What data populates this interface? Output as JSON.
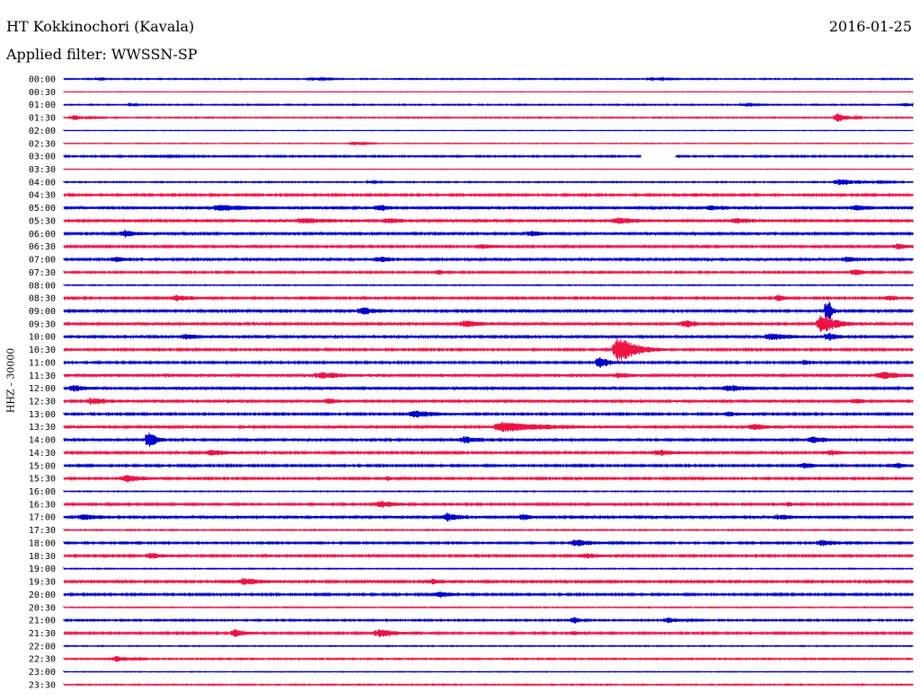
{
  "header": {
    "station": "HT Kokkinochori (Kavala)",
    "date": "2016-01-25",
    "filter": "Applied filter: WWSSN-SP"
  },
  "axis": {
    "channel_label": "HHZ - 30000"
  },
  "colors": {
    "even_trace": "#0000cc",
    "odd_trace": "#ee1144",
    "background": "#ffffff",
    "text": "#000000"
  },
  "chart_data": {
    "type": "line",
    "title": "HT Kokkinochori (Kavala)",
    "subtitle": "Applied filter: WWSSN-SP",
    "ylabel": "HHZ - 30000",
    "xlabel": "",
    "trace_interval_minutes": 30,
    "rows": [
      {
        "label": "00:00",
        "noise": 0.6,
        "events": [
          {
            "at": 0.04,
            "amp": 1.5,
            "len": 0.01
          },
          {
            "at": 0.29,
            "amp": 1.4,
            "len": 0.04
          },
          {
            "at": 0.69,
            "amp": 1.4,
            "len": 0.04
          }
        ]
      },
      {
        "label": "00:30",
        "noise": 0.3,
        "events": []
      },
      {
        "label": "01:00",
        "noise": 0.6,
        "events": [
          {
            "at": 0.08,
            "amp": 1.2,
            "len": 0.01
          },
          {
            "at": 0.8,
            "amp": 1.3,
            "len": 0.03
          },
          {
            "at": 0.99,
            "amp": 2.0,
            "len": 0.02
          }
        ]
      },
      {
        "label": "01:30",
        "noise": 0.6,
        "events": [
          {
            "at": 0.01,
            "amp": 2.5,
            "len": 0.04
          },
          {
            "at": 0.91,
            "amp": 4.5,
            "len": 0.03
          }
        ]
      },
      {
        "label": "02:00",
        "noise": 0.3,
        "events": []
      },
      {
        "label": "02:30",
        "noise": 0.4,
        "events": [
          {
            "at": 0.34,
            "amp": 2.2,
            "len": 0.03
          }
        ]
      },
      {
        "label": "03:00",
        "noise": 0.8,
        "events": [
          {
            "at": 0.1,
            "amp": 1.3,
            "len": 0.06
          },
          {
            "at": 0.71,
            "amp": 4.0,
            "len": 0.01
          }
        ],
        "gaps": [
          [
            0.68,
            0.72
          ]
        ]
      },
      {
        "label": "03:30",
        "noise": 0.3,
        "events": []
      },
      {
        "label": "04:00",
        "noise": 0.6,
        "events": [
          {
            "at": 0.36,
            "amp": 1.2,
            "len": 0.02
          },
          {
            "at": 0.91,
            "amp": 3.0,
            "len": 0.08
          }
        ]
      },
      {
        "label": "04:30",
        "noise": 1.0,
        "events": [
          {
            "at": 0.74,
            "amp": 1.5,
            "len": 0.03
          }
        ]
      },
      {
        "label": "05:00",
        "noise": 1.4,
        "events": [
          {
            "at": 0.18,
            "amp": 2.6,
            "len": 0.1
          },
          {
            "at": 0.37,
            "amp": 3.0,
            "len": 0.03
          },
          {
            "at": 0.76,
            "amp": 2.0,
            "len": 0.05
          },
          {
            "at": 0.93,
            "amp": 2.2,
            "len": 0.05
          }
        ]
      },
      {
        "label": "05:30",
        "noise": 1.3,
        "events": [
          {
            "at": 0.28,
            "amp": 2.4,
            "len": 0.08
          },
          {
            "at": 0.38,
            "amp": 2.6,
            "len": 0.04
          },
          {
            "at": 0.65,
            "amp": 2.8,
            "len": 0.07
          },
          {
            "at": 0.79,
            "amp": 2.4,
            "len": 0.05
          }
        ]
      },
      {
        "label": "06:00",
        "noise": 1.2,
        "events": [
          {
            "at": 0.07,
            "amp": 3.5,
            "len": 0.04
          },
          {
            "at": 0.55,
            "amp": 2.8,
            "len": 0.03
          }
        ]
      },
      {
        "label": "06:30",
        "noise": 1.1,
        "events": [
          {
            "at": 0.49,
            "amp": 2.2,
            "len": 0.06
          },
          {
            "at": 0.98,
            "amp": 2.6,
            "len": 0.04
          }
        ]
      },
      {
        "label": "07:00",
        "noise": 1.3,
        "events": [
          {
            "at": 0.06,
            "amp": 2.4,
            "len": 0.03
          },
          {
            "at": 0.37,
            "amp": 2.2,
            "len": 0.05
          },
          {
            "at": 0.92,
            "amp": 2.4,
            "len": 0.05
          }
        ]
      },
      {
        "label": "07:30",
        "noise": 0.9,
        "events": [
          {
            "at": 0.44,
            "amp": 2.4,
            "len": 0.02
          },
          {
            "at": 0.93,
            "amp": 3.2,
            "len": 0.03
          }
        ]
      },
      {
        "label": "08:00",
        "noise": 0.5,
        "events": []
      },
      {
        "label": "08:30",
        "noise": 1.0,
        "events": [
          {
            "at": 0.13,
            "amp": 2.6,
            "len": 0.06
          },
          {
            "at": 0.84,
            "amp": 4.0,
            "len": 0.02
          },
          {
            "at": 0.97,
            "amp": 2.4,
            "len": 0.04
          }
        ]
      },
      {
        "label": "09:00",
        "noise": 1.1,
        "events": [
          {
            "at": 0.35,
            "amp": 3.5,
            "len": 0.05
          },
          {
            "at": 0.9,
            "amp": 14.0,
            "len": 0.01
          }
        ]
      },
      {
        "label": "09:30",
        "noise": 1.2,
        "events": [
          {
            "at": 0.47,
            "amp": 3.0,
            "len": 0.06
          },
          {
            "at": 0.73,
            "amp": 3.6,
            "len": 0.04
          },
          {
            "at": 0.89,
            "amp": 10.0,
            "len": 0.05
          }
        ]
      },
      {
        "label": "10:00",
        "noise": 1.2,
        "events": [
          {
            "at": 0.14,
            "amp": 2.2,
            "len": 0.06
          },
          {
            "at": 0.83,
            "amp": 3.0,
            "len": 0.07
          },
          {
            "at": 0.9,
            "amp": 4.0,
            "len": 0.03
          }
        ]
      },
      {
        "label": "10:30",
        "noise": 1.0,
        "events": [
          {
            "at": 0.65,
            "amp": 14.0,
            "len": 0.06
          }
        ]
      },
      {
        "label": "11:00",
        "noise": 1.0,
        "events": [
          {
            "at": 0.63,
            "amp": 6.0,
            "len": 0.03
          },
          {
            "at": 0.87,
            "amp": 2.2,
            "len": 0.04
          }
        ]
      },
      {
        "label": "11:30",
        "noise": 1.3,
        "events": [
          {
            "at": 0.3,
            "amp": 3.0,
            "len": 0.08
          },
          {
            "at": 0.65,
            "amp": 2.4,
            "len": 0.04
          },
          {
            "at": 0.96,
            "amp": 3.6,
            "len": 0.06
          }
        ]
      },
      {
        "label": "12:00",
        "noise": 1.5,
        "events": [
          {
            "at": 0.01,
            "amp": 3.0,
            "len": 0.03
          },
          {
            "at": 0.78,
            "amp": 2.6,
            "len": 0.06
          }
        ]
      },
      {
        "label": "12:30",
        "noise": 1.2,
        "events": [
          {
            "at": 0.03,
            "amp": 3.0,
            "len": 0.06
          },
          {
            "at": 0.31,
            "amp": 2.6,
            "len": 0.03
          },
          {
            "at": 0.93,
            "amp": 2.4,
            "len": 0.03
          }
        ]
      },
      {
        "label": "13:00",
        "noise": 1.0,
        "events": [
          {
            "at": 0.41,
            "amp": 3.2,
            "len": 0.08
          },
          {
            "at": 0.78,
            "amp": 2.0,
            "len": 0.05
          }
        ]
      },
      {
        "label": "13:30",
        "noise": 1.3,
        "events": [
          {
            "at": 0.51,
            "amp": 4.5,
            "len": 0.15
          },
          {
            "at": 0.81,
            "amp": 2.6,
            "len": 0.05
          }
        ]
      },
      {
        "label": "14:00",
        "noise": 1.4,
        "events": [
          {
            "at": 0.1,
            "amp": 9.0,
            "len": 0.02
          },
          {
            "at": 0.47,
            "amp": 3.0,
            "len": 0.05
          },
          {
            "at": 0.88,
            "amp": 2.8,
            "len": 0.04
          }
        ]
      },
      {
        "label": "14:30",
        "noise": 1.1,
        "events": [
          {
            "at": 0.17,
            "amp": 2.6,
            "len": 0.06
          },
          {
            "at": 0.7,
            "amp": 2.8,
            "len": 0.05
          },
          {
            "at": 0.9,
            "amp": 2.6,
            "len": 0.04
          }
        ]
      },
      {
        "label": "15:00",
        "noise": 1.0,
        "events": [
          {
            "at": 0.87,
            "amp": 2.6,
            "len": 0.05
          },
          {
            "at": 0.98,
            "amp": 2.4,
            "len": 0.03
          }
        ]
      },
      {
        "label": "15:30",
        "noise": 1.0,
        "events": [
          {
            "at": 0.07,
            "amp": 3.4,
            "len": 0.06
          },
          {
            "at": 0.38,
            "amp": 2.0,
            "len": 0.02
          }
        ]
      },
      {
        "label": "16:00",
        "noise": 0.5,
        "events": []
      },
      {
        "label": "16:30",
        "noise": 1.0,
        "events": [
          {
            "at": 0.37,
            "amp": 3.0,
            "len": 0.06
          },
          {
            "at": 0.85,
            "amp": 2.0,
            "len": 0.03
          }
        ]
      },
      {
        "label": "17:00",
        "noise": 1.3,
        "events": [
          {
            "at": 0.02,
            "amp": 2.6,
            "len": 0.05
          },
          {
            "at": 0.45,
            "amp": 4.0,
            "len": 0.04
          },
          {
            "at": 0.54,
            "amp": 3.0,
            "len": 0.02
          },
          {
            "at": 0.84,
            "amp": 2.4,
            "len": 0.05
          }
        ]
      },
      {
        "label": "17:30",
        "noise": 0.6,
        "events": []
      },
      {
        "label": "18:00",
        "noise": 0.9,
        "events": [
          {
            "at": 0.6,
            "amp": 3.6,
            "len": 0.06
          },
          {
            "at": 0.89,
            "amp": 3.0,
            "len": 0.05
          }
        ]
      },
      {
        "label": "18:30",
        "noise": 1.0,
        "events": [
          {
            "at": 0.1,
            "amp": 2.8,
            "len": 0.05
          },
          {
            "at": 0.61,
            "amp": 2.4,
            "len": 0.06
          }
        ]
      },
      {
        "label": "19:00",
        "noise": 0.5,
        "events": []
      },
      {
        "label": "19:30",
        "noise": 1.1,
        "events": [
          {
            "at": 0.21,
            "amp": 3.2,
            "len": 0.06
          },
          {
            "at": 0.43,
            "amp": 2.4,
            "len": 0.04
          }
        ]
      },
      {
        "label": "20:00",
        "noise": 1.0,
        "events": [
          {
            "at": 0.44,
            "amp": 3.0,
            "len": 0.04
          }
        ]
      },
      {
        "label": "20:30",
        "noise": 0.5,
        "events": []
      },
      {
        "label": "21:00",
        "noise": 0.8,
        "events": [
          {
            "at": 0.6,
            "amp": 3.4,
            "len": 0.02
          },
          {
            "at": 0.71,
            "amp": 2.6,
            "len": 0.04
          }
        ]
      },
      {
        "label": "21:30",
        "noise": 1.0,
        "events": [
          {
            "at": 0.2,
            "amp": 3.4,
            "len": 0.04
          },
          {
            "at": 0.37,
            "amp": 4.0,
            "len": 0.05
          },
          {
            "at": 0.6,
            "amp": 2.0,
            "len": 0.02
          }
        ]
      },
      {
        "label": "22:00",
        "noise": 0.5,
        "events": []
      },
      {
        "label": "22:30",
        "noise": 0.7,
        "events": [
          {
            "at": 0.06,
            "amp": 2.8,
            "len": 0.04
          }
        ]
      },
      {
        "label": "23:00",
        "noise": 0.4,
        "events": []
      },
      {
        "label": "23:30",
        "noise": 0.6,
        "events": []
      }
    ]
  }
}
